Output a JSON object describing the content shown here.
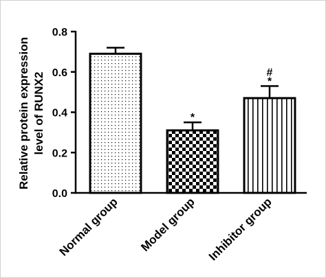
{
  "chart_data": {
    "type": "bar",
    "ylabel": [
      "Relative protein expression",
      "level of RUNX2"
    ],
    "categories": [
      "Normal group",
      "Model group",
      "Inhibitor group"
    ],
    "values": [
      0.69,
      0.31,
      0.47
    ],
    "errors": [
      0.03,
      0.04,
      0.06
    ],
    "patterns": [
      "dots",
      "checker",
      "stripes"
    ],
    "color": "#000000",
    "ylim": [
      0,
      0.8
    ],
    "yticks": [
      {
        "value": 0,
        "label": "0.0"
      },
      {
        "value": 0.2,
        "label": "0.2"
      },
      {
        "value": 0.4,
        "label": "0.4"
      },
      {
        "value": 0.6,
        "label": "0.6"
      },
      {
        "value": 0.8,
        "label": "0.8"
      }
    ],
    "annotations": [
      {
        "category": "Model group",
        "text": "*"
      },
      {
        "category": "Inhibitor group",
        "text": "*"
      },
      {
        "category": "Inhibitor group",
        "text": "#"
      }
    ]
  }
}
